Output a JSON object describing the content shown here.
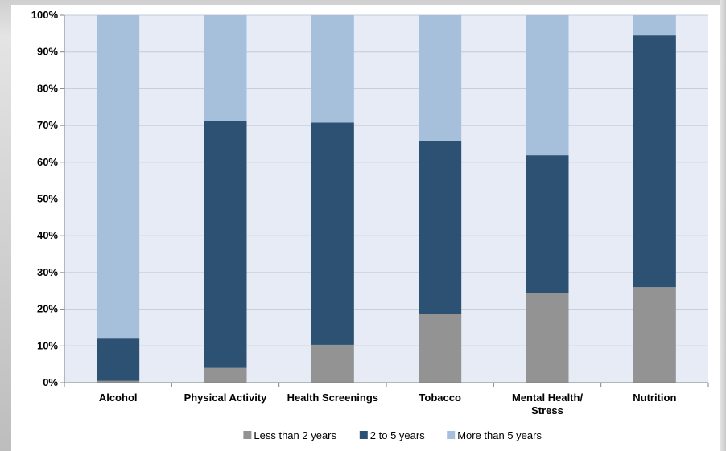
{
  "chart_data": {
    "type": "bar",
    "stacked": true,
    "categories": [
      "Alcohol",
      "Physical Activity",
      "Health Screenings",
      "Tobacco",
      "Mental Health/ Stress",
      "Nutrition"
    ],
    "category_lines": [
      [
        "Alcohol"
      ],
      [
        "Physical Activity"
      ],
      [
        "Health Screenings"
      ],
      [
        "Tobacco"
      ],
      [
        "Mental Health/",
        "Stress"
      ],
      [
        "Nutrition"
      ]
    ],
    "series": [
      {
        "name": "Less than 2 years",
        "values": [
          0.5,
          4,
          10.3,
          18.7,
          24.3,
          26
        ],
        "color": "#939393"
      },
      {
        "name": "2 to 5 years",
        "values": [
          11.5,
          67.2,
          60.5,
          47,
          37.6,
          68.5
        ],
        "color": "#2d5173"
      },
      {
        "name": "More than 5 years",
        "values": [
          88,
          28.8,
          29.2,
          34.3,
          38.1,
          5.5
        ],
        "color": "#a6c0dc"
      }
    ],
    "ylim": [
      0,
      100
    ],
    "yticks": [
      0,
      10,
      20,
      30,
      40,
      50,
      60,
      70,
      80,
      90,
      100
    ],
    "ytick_labels": [
      "0%",
      "10%",
      "20%",
      "30%",
      "40%",
      "50%",
      "60%",
      "70%",
      "80%",
      "90%",
      "100%"
    ],
    "grid": true,
    "plot_background": "#e6ebf5",
    "gridline_color": "#c3cad8",
    "legend_position": "bottom",
    "title": "",
    "xlabel": "",
    "ylabel": ""
  }
}
